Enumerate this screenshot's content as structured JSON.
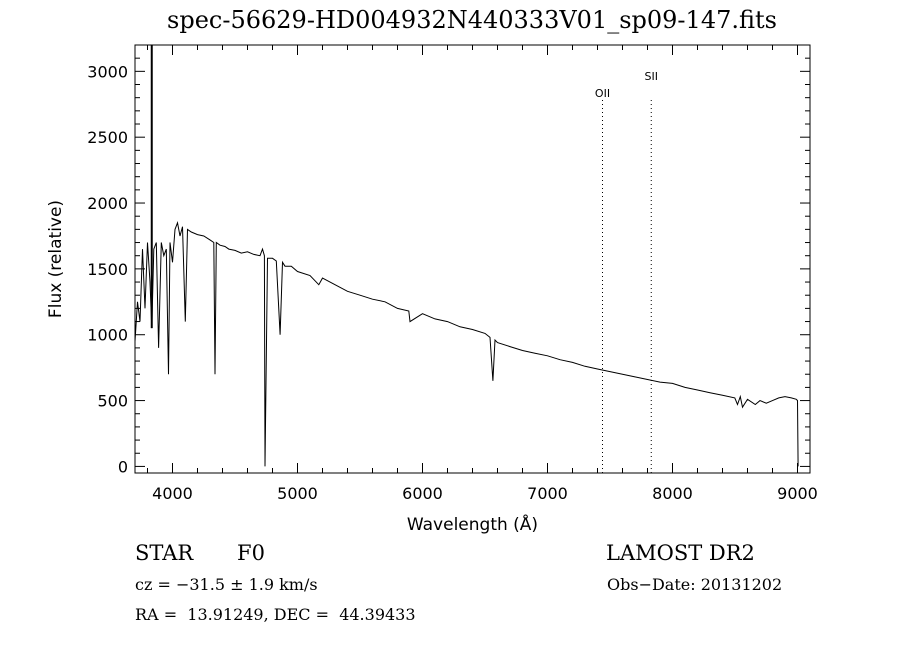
{
  "chart_data": {
    "type": "line",
    "title": "spec-56629-HD004932N440333V01_sp09-147.fits",
    "xlabel": "Wavelength (Å)",
    "ylabel": "Flux (relative)",
    "xlim": [
      3700,
      9100
    ],
    "ylim": [
      -50,
      3200
    ],
    "xticks": [
      4000,
      5000,
      6000,
      7000,
      8000,
      9000
    ],
    "yticks": [
      0,
      500,
      1000,
      1500,
      2000,
      2500,
      3000
    ],
    "line_markers": [
      {
        "label": "OII",
        "x": 7440
      },
      {
        "label": "SII",
        "x": 7830
      }
    ],
    "series": [
      {
        "x": [
          3700,
          3720,
          3740,
          3760,
          3780,
          3800,
          3820,
          3834,
          3850,
          3870,
          3889,
          3910,
          3930,
          3950,
          3968,
          3980,
          4000,
          4020,
          4040,
          4060,
          4080,
          4102,
          4120,
          4150,
          4200,
          4250,
          4300,
          4330,
          4340,
          4350,
          4380,
          4420,
          4450,
          4500,
          4550,
          4600,
          4650,
          4700,
          4720,
          4735,
          4740,
          4760,
          4800,
          4830,
          4861,
          4880,
          4900,
          4950,
          5000,
          5100,
          5170,
          5200,
          5300,
          5400,
          5500,
          5600,
          5700,
          5800,
          5890,
          5900,
          6000,
          6100,
          6200,
          6300,
          6400,
          6500,
          6540,
          6563,
          6580,
          6600,
          6700,
          6800,
          6900,
          7000,
          7100,
          7200,
          7300,
          7400,
          7500,
          7600,
          7700,
          7800,
          7900,
          8000,
          8100,
          8200,
          8300,
          8400,
          8498,
          8520,
          8542,
          8560,
          8600,
          8662,
          8700,
          8750,
          8800,
          8850,
          8900,
          8950,
          8990,
          9000,
          9005
        ],
        "y": [
          950,
          1250,
          1100,
          1650,
          1200,
          1700,
          1400,
          1050,
          1650,
          1700,
          900,
          1700,
          1600,
          1650,
          700,
          1700,
          1550,
          1800,
          1850,
          1750,
          1820,
          1100,
          1800,
          1780,
          1760,
          1750,
          1720,
          1700,
          700,
          1700,
          1680,
          1670,
          1650,
          1640,
          1620,
          1630,
          1610,
          1600,
          1650,
          1600,
          0,
          1580,
          1580,
          1560,
          1000,
          1550,
          1520,
          1520,
          1480,
          1450,
          1380,
          1430,
          1380,
          1330,
          1300,
          1270,
          1250,
          1200,
          1180,
          1100,
          1160,
          1120,
          1100,
          1060,
          1040,
          1010,
          980,
          650,
          960,
          940,
          910,
          880,
          860,
          840,
          810,
          790,
          760,
          740,
          720,
          700,
          680,
          660,
          640,
          630,
          600,
          580,
          560,
          540,
          520,
          470,
          530,
          450,
          510,
          470,
          500,
          480,
          500,
          520,
          530,
          520,
          510,
          500,
          0
        ]
      }
    ]
  },
  "footer": {
    "object": "STAR",
    "subclass": "F0",
    "survey": "LAMOST DR2",
    "cz": "cz = −31.5 ± 1.9 km/s",
    "obs_date": "Obs−Date: 20131202",
    "coords": "RA =  13.91249, DEC =  44.39433"
  }
}
